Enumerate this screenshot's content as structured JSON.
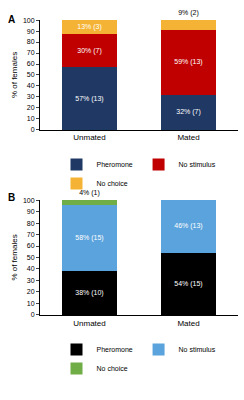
{
  "chart_data": [
    {
      "type": "bar",
      "title": "A",
      "categories": [
        "Unmated",
        "Mated"
      ],
      "series": [
        {
          "name": "Pheromone",
          "color": "#1f3864",
          "values": [
            57,
            32
          ],
          "value_labels": [
            "57% (13)",
            "32% (7)"
          ]
        },
        {
          "name": "No stimulus",
          "color": "#c00000",
          "values": [
            30,
            59
          ],
          "value_labels": [
            "30% (7)",
            "59% (13)"
          ]
        },
        {
          "name": "No choice",
          "color": "#f5b335",
          "values": [
            13,
            9
          ],
          "value_labels": [
            "13% (3)",
            "9% (2)"
          ]
        }
      ],
      "y_label": "% of females",
      "ylim": [
        0,
        100
      ],
      "yticks": [
        0,
        10,
        20,
        30,
        40,
        50,
        60,
        70,
        80,
        90,
        100
      ],
      "stacked": true,
      "data_labels": true,
      "legend": "bottom",
      "grid": false
    },
    {
      "type": "bar",
      "title": "B",
      "categories": [
        "Unmated",
        "Mated"
      ],
      "series": [
        {
          "name": "Pheromone",
          "color": "#000000",
          "values": [
            38,
            54
          ],
          "value_labels": [
            "38% (10)",
            "54% (15)"
          ]
        },
        {
          "name": "No stimulus",
          "color": "#5ba3dc",
          "values": [
            58,
            46
          ],
          "value_labels": [
            "58% (15)",
            "46% (13)"
          ]
        },
        {
          "name": "No choice",
          "color": "#70ad47",
          "values": [
            4,
            0
          ],
          "value_labels": [
            "4% (1)",
            null
          ]
        }
      ],
      "y_label": "% of females",
      "ylim": [
        0,
        100
      ],
      "yticks": [
        0,
        10,
        20,
        30,
        40,
        50,
        60,
        70,
        80,
        90,
        100
      ],
      "stacked": true,
      "data_labels": true,
      "legend": "bottom",
      "grid": false
    }
  ]
}
